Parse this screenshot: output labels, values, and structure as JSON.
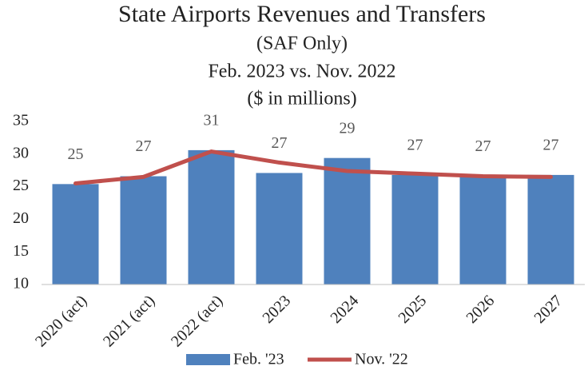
{
  "chart_data": {
    "type": "bar_line",
    "title": "State Airports Revenues and Transfers",
    "subtitle": [
      "(SAF Only)",
      "Feb. 2023 vs. Nov. 2022",
      "($ in millions)"
    ],
    "categories": [
      "2020 (act)",
      "2021 (act)",
      "2022 (act)",
      "2023",
      "2024",
      "2025",
      "2026",
      "2027"
    ],
    "series": [
      {
        "name": "Feb. '23",
        "type": "bar",
        "color": "#4f81bd",
        "values": [
          25.4,
          26.6,
          30.6,
          27.1,
          29.4,
          26.8,
          26.6,
          26.8
        ],
        "value_labels": [
          "25",
          "27",
          "31",
          "27",
          "29",
          "27",
          "27",
          "27"
        ]
      },
      {
        "name": "Nov. '22",
        "type": "line",
        "color": "#c0504d",
        "values": [
          25.5,
          26.5,
          30.4,
          28.7,
          27.4,
          27.0,
          26.6,
          26.5
        ]
      }
    ],
    "ylim": [
      10,
      35
    ],
    "yticks": [
      10,
      15,
      20,
      25,
      30,
      35
    ],
    "grid": false,
    "legend": "bottom"
  }
}
